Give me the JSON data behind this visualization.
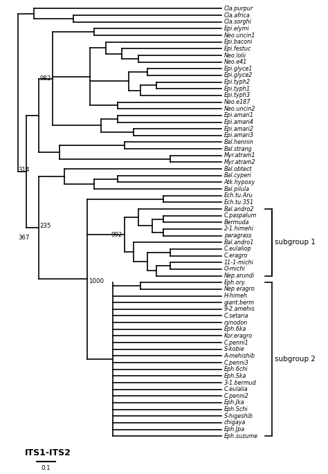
{
  "figsize": [
    4.74,
    6.85
  ],
  "dpi": 100,
  "lw": 1.2,
  "leaf_fontsize": 5.8,
  "bootstrap_fontsize": 6.2,
  "annotation_fontsize": 9.0,
  "scale_label": "0.1",
  "its_label": "ITS1-ITS2",
  "subgroup1_label": "subgroup 1",
  "subgroup2_label": "subgroup 2",
  "leaves": [
    "Cla.purpur",
    "Cla.africa",
    "Cla.sorghi",
    "Epi.elymi",
    "Neo.uncin1",
    "Epi.baconi",
    "Epi.festuc",
    "Neo.lolii",
    "Neo.e41",
    "Epi.glyce1",
    "Epi.glyce2",
    "Epi.typh2",
    "Epi.typh1",
    "Epi.typh3",
    "Neo.e187",
    "Neo.uncin2",
    "Epi.amari1",
    "Epi.amari4",
    "Epi.amari2",
    "Epi.amari3",
    "Bal.hennin",
    "Bal.strang",
    "Myr.atram1",
    "Myr.atram2",
    "Bal.obtect",
    "Bal.cyperi",
    "Atk.hypoxy",
    "Bal.pilula",
    "Ech.tu.Aru",
    "Ech.tu.351",
    "Bal.andro2",
    "C.paspalum",
    "Bermuda",
    "2-1.himehi",
    "paragrass",
    "Bal.andro1",
    "C.eulaliop",
    "C.eragro",
    "11-1-michi",
    "O-michi",
    "Nep.arundi",
    "Eph.ory.",
    "Nep.eragro",
    "H-himeh",
    "giant.berm",
    "9-2.amehis",
    "C.setaria",
    "cynodon",
    "Eph.6ka",
    "Kor.eragro",
    "C.penni1",
    "S-kobie",
    "A-mehishib",
    "C.penni3",
    "Eph.6chi",
    "Eph.Ska",
    "3-1.bermud",
    "C.eulalia",
    "C.penni2",
    "Eph.Jka",
    "Eph.Schi",
    "S-higeshib",
    "chigaya",
    "Eph.Jpa",
    "Eph.suzume"
  ]
}
